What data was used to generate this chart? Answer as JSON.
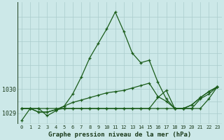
{
  "title": "Graphe pression niveau de la mer (hPa)",
  "background_color": "#cce8e8",
  "grid_color": "#aacccc",
  "line_color": "#1a5c1a",
  "x_ticks": [
    0,
    1,
    2,
    3,
    4,
    5,
    6,
    7,
    8,
    9,
    10,
    11,
    12,
    13,
    14,
    15,
    16,
    17,
    18,
    19,
    20,
    21,
    22,
    23
  ],
  "xlim": [
    -0.5,
    23.5
  ],
  "ylim": [
    1028.55,
    1033.6
  ],
  "yticks": [
    1029,
    1030
  ],
  "hgrid_lines": [
    1029,
    1029.5,
    1030,
    1030.5,
    1031,
    1031.5,
    1032,
    1032.5,
    1033
  ],
  "series": [
    [
      1028.7,
      1029.2,
      1029.2,
      1028.9,
      1029.1,
      1029.3,
      1029.8,
      1030.5,
      1031.3,
      1031.9,
      1032.5,
      1033.2,
      1032.4,
      1031.5,
      1031.1,
      1031.2,
      1030.3,
      1029.6,
      1029.2,
      1029.2,
      1029.2,
      1029.6,
      1029.8,
      1030.1
    ],
    [
      1029.2,
      1029.2,
      1029.2,
      1029.2,
      1029.2,
      1029.2,
      1029.2,
      1029.2,
      1029.2,
      1029.2,
      1029.2,
      1029.2,
      1029.2,
      1029.2,
      1029.2,
      1029.2,
      1029.2,
      1029.2,
      1029.2,
      1029.2,
      1029.2,
      1029.2,
      1029.6,
      1030.1
    ],
    [
      1029.2,
      1029.2,
      1029.05,
      1029.05,
      1029.15,
      1029.3,
      1029.45,
      1029.55,
      1029.65,
      1029.75,
      1029.85,
      1029.9,
      1029.95,
      1030.05,
      1030.15,
      1030.25,
      1029.7,
      1029.5,
      1029.2,
      1029.2,
      1029.35,
      1029.65,
      1029.9,
      1030.1
    ],
    [
      1029.2,
      1029.2,
      1029.05,
      1029.05,
      1029.15,
      1029.2,
      1029.2,
      1029.2,
      1029.2,
      1029.2,
      1029.2,
      1029.2,
      1029.2,
      1029.2,
      1029.2,
      1029.2,
      1029.65,
      1029.95,
      1029.2,
      1029.2,
      1029.35,
      1029.65,
      1029.9,
      1030.1
    ]
  ]
}
